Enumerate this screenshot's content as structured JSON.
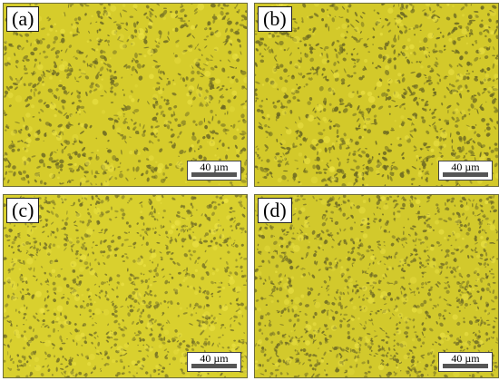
{
  "panels": [
    {
      "label": "(a)",
      "scale_text": "40 µm",
      "base_color": "#d6cc2b",
      "grain_color": "#6f6b24"
    },
    {
      "label": "(b)",
      "scale_text": "40 µm",
      "base_color": "#d3c92a",
      "grain_color": "#6a6722"
    },
    {
      "label": "(c)",
      "scale_text": "40 µm",
      "base_color": "#d9d02e",
      "grain_color": "#747026"
    },
    {
      "label": "(d)",
      "scale_text": "40 µm",
      "base_color": "#d2c92c",
      "grain_color": "#6e6a25"
    }
  ]
}
